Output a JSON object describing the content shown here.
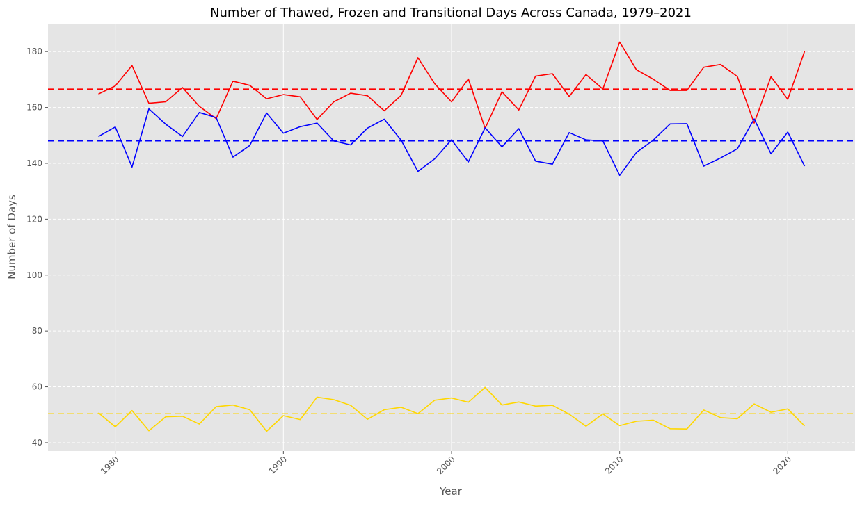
{
  "chart_data": {
    "type": "line",
    "title": "Number of Thawed, Frozen and Transitional Days Across Canada, 1979–2021",
    "xlabel": "Year",
    "ylabel": "Number of Days",
    "xlim": [
      1976,
      2024
    ],
    "ylim": [
      37,
      190
    ],
    "xticks": [
      1980,
      1990,
      2000,
      2010,
      2020
    ],
    "yticks": [
      40,
      60,
      80,
      100,
      120,
      140,
      160,
      180
    ],
    "grid": true,
    "x": [
      1979,
      1980,
      1981,
      1982,
      1983,
      1984,
      1985,
      1986,
      1987,
      1988,
      1989,
      1990,
      1991,
      1992,
      1993,
      1994,
      1995,
      1996,
      1997,
      1998,
      1999,
      2000,
      2001,
      2002,
      2003,
      2004,
      2005,
      2006,
      2007,
      2008,
      2009,
      2010,
      2011,
      2012,
      2013,
      2014,
      2015,
      2016,
      2017,
      2018,
      2019,
      2020,
      2021
    ],
    "series": [
      {
        "color": "#ff0000",
        "values": [
          164.8,
          167.7,
          175.0,
          161.5,
          162.0,
          167.1,
          160.4,
          156.0,
          169.4,
          167.9,
          163.1,
          164.6,
          163.8,
          155.7,
          162.0,
          165.1,
          164.2,
          158.8,
          164.3,
          177.8,
          168.5,
          162.0,
          170.2,
          152.5,
          165.6,
          159.1,
          171.2,
          172.1,
          163.9,
          171.8,
          166.6,
          183.4,
          173.5,
          170.1,
          166.1,
          166.1,
          174.4,
          175.4,
          171.1,
          154.4,
          171.0,
          162.9,
          180.1
        ],
        "mean": 166.5
      },
      {
        "color": "#0000ff",
        "values": [
          149.6,
          153.0,
          138.7,
          159.5,
          154.0,
          149.6,
          158.2,
          156.4,
          142.2,
          146.4,
          158.0,
          150.8,
          153.1,
          154.4,
          148.0,
          146.6,
          152.6,
          155.8,
          148.3,
          137.1,
          141.6,
          148.4,
          140.5,
          152.7,
          145.9,
          152.4,
          140.8,
          139.7,
          151.0,
          148.4,
          148.0,
          135.7,
          143.9,
          148.3,
          154.1,
          154.2,
          139.0,
          141.9,
          145.2,
          155.9,
          143.4,
          151.2,
          139.0
        ],
        "mean": 148.1
      },
      {
        "color": "#ffd700",
        "values": [
          50.7,
          45.7,
          51.5,
          44.3,
          49.3,
          49.5,
          46.7,
          52.9,
          53.5,
          51.8,
          44.1,
          49.7,
          48.3,
          56.3,
          55.4,
          53.4,
          48.4,
          51.8,
          52.7,
          50.4,
          55.2,
          56.0,
          54.5,
          59.8,
          53.5,
          54.6,
          53.1,
          53.4,
          50.2,
          45.9,
          50.3,
          46.1,
          47.7,
          48.1,
          45.0,
          44.9,
          51.7,
          49.0,
          48.6,
          53.9,
          50.9,
          52.1,
          46.0
        ],
        "mean": 50.5
      }
    ]
  }
}
